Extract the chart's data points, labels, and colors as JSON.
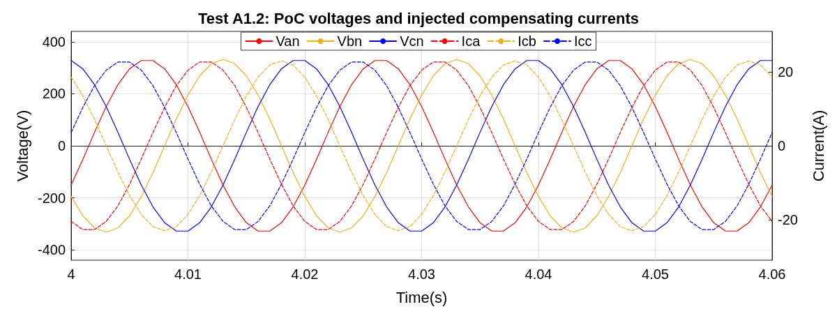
{
  "chart_data": {
    "type": "line",
    "title": "Test A1.2: PoC voltages and injected compensating currents",
    "xlabel": "Time(s)",
    "ylabel": "Voltage(V)",
    "y2label": "Current(A)",
    "x": [
      4,
      4.001,
      4.002,
      4.003,
      4.004,
      4.005,
      4.006,
      4.007,
      4.008,
      4.009,
      4.01,
      4.011,
      4.012,
      4.013,
      4.014,
      4.015,
      4.016,
      4.017,
      4.018,
      4.019,
      4.02,
      4.021,
      4.022,
      4.023,
      4.024,
      4.025,
      4.026,
      4.027,
      4.028,
      4.029,
      4.03,
      4.031,
      4.032,
      4.033,
      4.034,
      4.035,
      4.036,
      4.037,
      4.038,
      4.039,
      4.04,
      4.041,
      4.042,
      4.043,
      4.044,
      4.045,
      4.046,
      4.047,
      4.048,
      4.049,
      4.05,
      4.051,
      4.052,
      4.053,
      4.054,
      4.055,
      4.056,
      4.057,
      4.058,
      4.059,
      4.06
    ],
    "series": [
      {
        "name": "Van",
        "color": "#ff0000",
        "values": [
          -151,
          -52,
          52,
          151,
          235,
          296,
          328,
          328,
          296,
          235,
          151,
          52,
          -52,
          -151,
          -235,
          -296,
          -328,
          -328,
          -296,
          -235,
          -151,
          -52,
          52,
          151,
          235,
          296,
          328,
          328,
          296,
          235,
          151,
          52,
          -52,
          -151,
          -235,
          -296,
          -328,
          -328,
          -296,
          -235,
          -151,
          -52,
          52,
          151,
          235,
          296,
          328,
          328,
          296,
          235,
          151,
          52,
          -52,
          -151,
          -235,
          -296,
          -328,
          -328,
          -296,
          -235,
          -151
        ]
      },
      {
        "name": "Vbn",
        "color": "#edb120",
        "values": [
          -195,
          -269,
          -316,
          -332,
          -316,
          -269,
          -195,
          -103,
          0,
          103,
          195,
          269,
          316,
          332,
          316,
          269,
          195,
          103,
          0,
          -103,
          -195,
          -269,
          -316,
          -332,
          -316,
          -269,
          -195,
          -103,
          0,
          103,
          195,
          269,
          316,
          332,
          316,
          269,
          195,
          103,
          0,
          -103,
          -195,
          -269,
          -316,
          -332,
          -316,
          -269,
          -195,
          -103,
          0,
          103,
          195,
          269,
          316,
          332,
          316,
          269,
          195,
          103,
          0,
          -103,
          -195
        ]
      },
      {
        "name": "Vcn",
        "color": "#0000ff",
        "values": [
          328,
          296,
          235,
          151,
          52,
          -52,
          -151,
          -235,
          -296,
          -328,
          -328,
          -296,
          -235,
          -151,
          -52,
          52,
          151,
          235,
          296,
          328,
          328,
          296,
          235,
          151,
          52,
          -52,
          -151,
          -235,
          -296,
          -328,
          -328,
          -296,
          -235,
          -151,
          -52,
          52,
          151,
          235,
          296,
          328,
          328,
          296,
          235,
          151,
          52,
          -52,
          -151,
          -235,
          -296,
          -328,
          -328,
          -296,
          -235,
          -151,
          -52,
          52,
          151,
          235,
          296,
          328,
          328
        ]
      },
      {
        "name": "Ica",
        "color": "#ff0000",
        "axis": "y2",
        "line_style": "dashed",
        "values": [
          -20.5,
          -22.7,
          -22.7,
          -20.5,
          -16.3,
          -10.4,
          -3.6,
          3.6,
          10.4,
          16.3,
          20.5,
          22.7,
          22.7,
          20.5,
          16.3,
          10.4,
          3.6,
          -3.6,
          -10.4,
          -16.3,
          -20.5,
          -22.7,
          -22.7,
          -20.5,
          -16.3,
          -10.4,
          -3.6,
          3.6,
          10.4,
          16.3,
          20.5,
          22.7,
          22.7,
          20.5,
          16.3,
          10.4,
          3.6,
          -3.6,
          -10.4,
          -16.3,
          -20.5,
          -22.7,
          -22.7,
          -20.5,
          -16.3,
          -10.4,
          -3.6,
          3.6,
          10.4,
          16.3,
          20.5,
          22.7,
          22.7,
          20.5,
          16.3,
          10.4,
          3.6,
          -3.6,
          -10.4,
          -16.3,
          -20.5
        ]
      },
      {
        "name": "Icb",
        "color": "#edb120",
        "axis": "y2",
        "line_style": "dashed",
        "values": [
          18.6,
          13.5,
          7.1,
          0,
          -7.1,
          -13.5,
          -18.6,
          -21.9,
          -23,
          -21.9,
          -18.6,
          -13.5,
          -7.1,
          0,
          7.1,
          13.5,
          18.6,
          21.9,
          23,
          21.9,
          18.6,
          13.5,
          7.1,
          0,
          -7.1,
          -13.5,
          -18.6,
          -21.9,
          -23,
          -21.9,
          -18.6,
          -13.5,
          -7.1,
          0,
          7.1,
          13.5,
          18.6,
          21.9,
          23,
          21.9,
          18.6,
          13.5,
          7.1,
          0,
          -7.1,
          -13.5,
          -18.6,
          -21.9,
          -23,
          -21.9,
          -18.6,
          -13.5,
          -7.1,
          0,
          7.1,
          13.5,
          18.6,
          21.9,
          23,
          21.9,
          18.6
        ]
      },
      {
        "name": "Icc",
        "color": "#0000ff",
        "axis": "y2",
        "line_style": "dashed",
        "values": [
          3.6,
          10.4,
          16.3,
          20.5,
          22.7,
          22.7,
          20.5,
          16.3,
          10.4,
          3.6,
          -3.6,
          -10.4,
          -16.3,
          -20.5,
          -22.7,
          -22.7,
          -20.5,
          -16.3,
          -10.4,
          -3.6,
          3.6,
          10.4,
          16.3,
          20.5,
          22.7,
          22.7,
          20.5,
          16.3,
          10.4,
          3.6,
          -3.6,
          -10.4,
          -16.3,
          -20.5,
          -22.7,
          -22.7,
          -20.5,
          -16.3,
          -10.4,
          -3.6,
          3.6,
          10.4,
          16.3,
          20.5,
          22.7,
          22.7,
          20.5,
          16.3,
          10.4,
          3.6,
          -3.6,
          -10.4,
          -16.3,
          -20.5,
          -22.7,
          -22.7,
          -20.5,
          -16.3,
          -10.4,
          -3.6,
          3.6
        ]
      }
    ],
    "xlim": [
      4,
      4.06
    ],
    "xticks": [
      4,
      4.01,
      4.02,
      4.03,
      4.04,
      4.05,
      4.06
    ],
    "ylim": [
      -440,
      440
    ],
    "yticks": [
      -400,
      -200,
      0,
      200,
      400
    ],
    "y2lim": [
      -31,
      31
    ],
    "y2ticks": [
      -20,
      0,
      20
    ],
    "grid": true,
    "legend": "top",
    "marker": "none",
    "line_style": "solid"
  }
}
